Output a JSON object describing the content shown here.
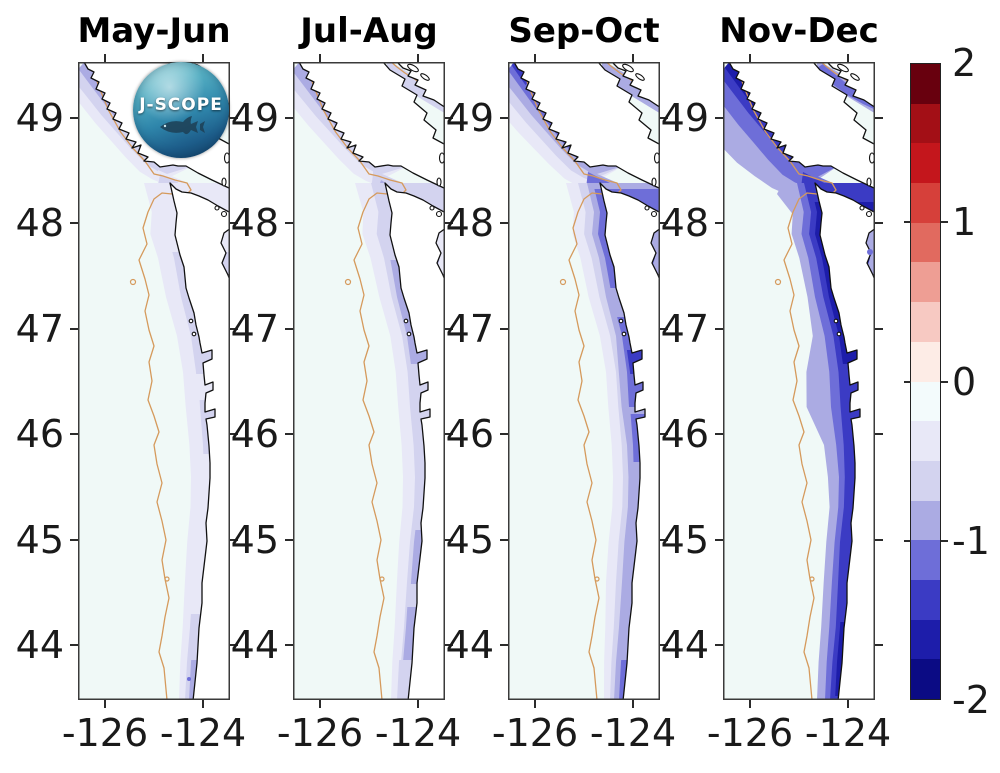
{
  "figure": {
    "background": "#ffffff"
  },
  "logo": {
    "text": "J-SCOPE"
  },
  "panels": [
    {
      "title": "May-Jun"
    },
    {
      "title": "Jul-Aug"
    },
    {
      "title": "Sep-Oct"
    },
    {
      "title": "Nov-Dec"
    }
  ],
  "axes": {
    "y_ticks": [
      "49",
      "48",
      "47",
      "46",
      "45",
      "44"
    ],
    "x_ticks": [
      "-126",
      "-124"
    ]
  },
  "colorbar": {
    "tick_labels": [
      "2",
      "1",
      "0",
      "-1",
      "-2"
    ],
    "min": -2,
    "max": 2,
    "n_segments": 16,
    "segment_colors": [
      "#68000e",
      "#a30f16",
      "#c4161c",
      "#d6403a",
      "#e16a5f",
      "#ee9e94",
      "#f7c9c2",
      "#fdece6",
      "#f3fbfc",
      "#e8e8f7",
      "#d3d3ef",
      "#ababe3",
      "#6e6ed8",
      "#3b3bc4",
      "#1d1daa",
      "#0b0b84"
    ]
  },
  "map_colors": {
    "ocean_base": "#f0f9f7",
    "land": "#ffffff",
    "coastline": "#111111",
    "shelf_contour": "#d59a5c"
  },
  "chart_data": {
    "type": "heatmap",
    "subtype": "bimonthly coastal anomaly maps, US Pacific Northwest / Vancouver Island coast",
    "panels": [
      {
        "title": "May-Jun",
        "offshore_anomaly": -0.1,
        "coastal_band_anomaly": -0.3,
        "max_negative_anomaly": -0.8,
        "pattern": "faint narrow negative band over the shelf, small stronger patch at southern end"
      },
      {
        "title": "Jul-Aug",
        "offshore_anomaly": -0.1,
        "coastal_band_anomaly": -0.5,
        "max_negative_anomaly": -1.0,
        "pattern": "light negative band along shelf with patches off the Washington coast and Vancouver Island"
      },
      {
        "title": "Sep-Oct",
        "offshore_anomaly": -0.1,
        "coastal_band_anomaly": -0.9,
        "max_negative_anomaly": -1.3,
        "pattern": "moderate negative band hugging coast, extending into Strait of Juan de Fuca"
      },
      {
        "title": "Nov-Dec",
        "offshore_anomaly": -0.1,
        "coastal_band_anomaly": -1.4,
        "max_negative_anomaly": -1.8,
        "pattern": "strong continuous negative band along entire coast, Vancouver Island shelf and strait"
      }
    ],
    "x_axis": {
      "ticks": [
        -126,
        -124
      ],
      "range_estimate": [
        -126.5,
        -123.5
      ]
    },
    "y_axis": {
      "ticks": [
        49,
        48,
        47,
        46,
        45,
        44
      ],
      "range_estimate": [
        43.5,
        49.5
      ]
    },
    "colorbar": {
      "range": [
        -2,
        2
      ],
      "step": 0.25,
      "ticks": [
        2,
        1,
        0,
        -1,
        -2
      ]
    },
    "overlays": [
      "black coastline",
      "tan shelf-break contour",
      "J-SCOPE logo in first panel"
    ]
  }
}
